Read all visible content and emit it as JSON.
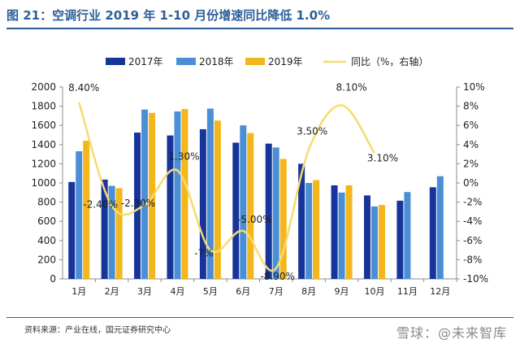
{
  "title": "图 21：空调行业 2019 年 1-10 月份增速同比降低 1.0%",
  "source": "资料来源：产业在线，国元证券研究中心",
  "watermark": "雪球：@未来智库",
  "colors": {
    "s2017": "#17349a",
    "s2018": "#4a8fd6",
    "s2019": "#f3b61c",
    "yoy": "#f5dc6e",
    "title": "#2d5f97"
  },
  "chart_data": {
    "type": "bar",
    "categories": [
      "1月",
      "2月",
      "3月",
      "4月",
      "5月",
      "6月",
      "7月",
      "8月",
      "9月",
      "10月",
      "11月",
      "12月"
    ],
    "series": [
      {
        "name": "2017年",
        "values": [
          1010,
          1035,
          1525,
          1495,
          1560,
          1420,
          1410,
          1200,
          975,
          870,
          815,
          955
        ]
      },
      {
        "name": "2018年",
        "values": [
          1330,
          970,
          1765,
          1745,
          1775,
          1600,
          1370,
          1000,
          900,
          755,
          905,
          1070
        ]
      },
      {
        "name": "2019年",
        "values": [
          1440,
          945,
          1730,
          1770,
          1650,
          1520,
          1250,
          1030,
          975,
          770,
          null,
          null
        ]
      }
    ],
    "line": {
      "name": "同比（%，右轴）",
      "values": [
        8.4,
        -2.4,
        -2.3,
        1.3,
        -7.0,
        -5.0,
        -8.9,
        3.5,
        8.1,
        3.1
      ],
      "labels": [
        "8.40%",
        "-2.40%",
        "-2.30%",
        "1.30%",
        "-7%",
        "-5.00%",
        "-8.90%",
        "3.50%",
        "8.10%",
        "3.10%"
      ]
    },
    "ylim": [
      0,
      2000
    ],
    "yticks": [
      0,
      200,
      400,
      600,
      800,
      1000,
      1200,
      1400,
      1600,
      1800,
      2000
    ],
    "y2lim": [
      -10,
      10
    ],
    "y2ticks": [
      "-10%",
      "-8%",
      "-6%",
      "-4%",
      "-2%",
      "0%",
      "2%",
      "4%",
      "6%",
      "8%",
      "10%"
    ],
    "legend": [
      "2017年",
      "2018年",
      "2019年",
      "同比（%，右轴）"
    ],
    "legend_position": "top"
  }
}
